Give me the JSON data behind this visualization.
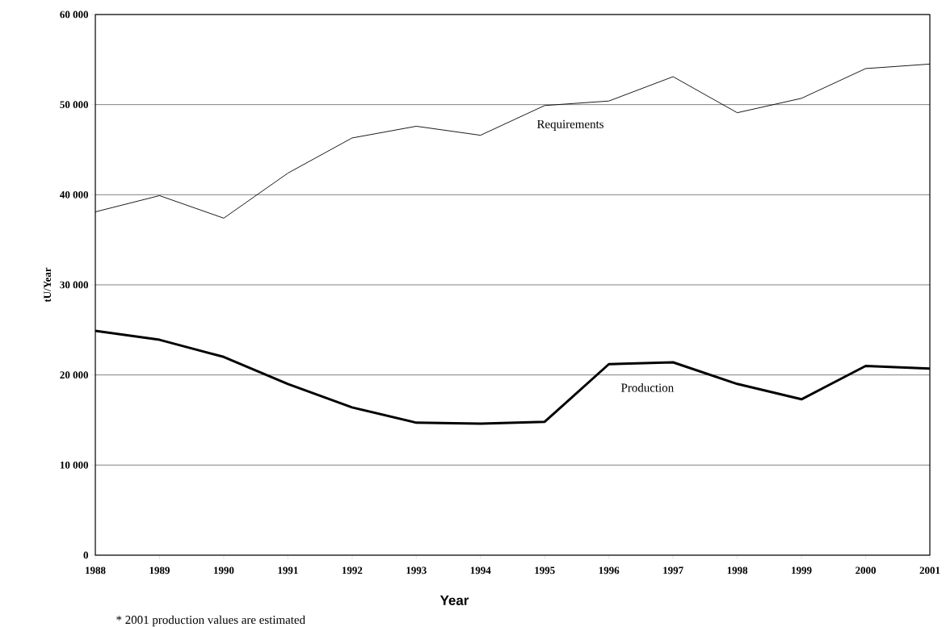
{
  "chart_data": {
    "type": "line",
    "xlabel": "Year",
    "ylabel": "tU/Year",
    "x": [
      1988,
      1989,
      1990,
      1991,
      1992,
      1993,
      1994,
      1995,
      1996,
      1997,
      1998,
      1999,
      2000,
      2001
    ],
    "series": [
      {
        "name": "Requirements",
        "color": "#000000",
        "values": [
          38100,
          39900,
          37400,
          42400,
          46300,
          47600,
          46600,
          49900,
          50400,
          53100,
          49100,
          50700,
          54000,
          54500
        ]
      },
      {
        "name": "Production",
        "color": "#000000",
        "values": [
          24900,
          23900,
          22000,
          19000,
          16400,
          14700,
          14600,
          14800,
          21200,
          21400,
          19000,
          17300,
          21000,
          20700
        ]
      }
    ],
    "xlim": [
      1988,
      2001
    ],
    "xticks": [
      1988,
      1989,
      1990,
      1991,
      1992,
      1993,
      1994,
      1995,
      1996,
      1997,
      1998,
      1999,
      2000,
      2001
    ],
    "ylim": [
      0,
      60000
    ],
    "yticks": [
      0,
      {
        "value": 10000,
        "label": "10 000"
      },
      {
        "value": 20000,
        "label": "20 000"
      },
      {
        "value": 30000,
        "label": "30 000"
      },
      {
        "value": 40000,
        "label": "40 000"
      },
      {
        "value": 50000,
        "label": "50 000"
      },
      {
        "value": 60000,
        "label": "60 000"
      }
    ],
    "grid": "y",
    "marker": "none",
    "line_style": "solid",
    "annotations": [
      "* 2001 production values are estimated"
    ]
  }
}
